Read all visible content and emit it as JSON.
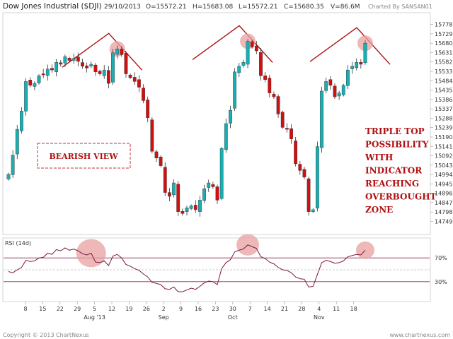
{
  "header": {
    "title": "Dow Jones Industrial ($DJI)",
    "date": "29/10/2013",
    "open": "O=15572.21",
    "high": "H=15683.08",
    "low": "L=15572.21",
    "close": "C=15680.35",
    "volume": "V=86.6M",
    "charted_by": "Charted By SANSAN01"
  },
  "footer": {
    "left": "Copyright © 2013 ChartNexus",
    "right": "www.chartnexus.com"
  },
  "annotations": {
    "bearish": "BEARISH VIEW",
    "triple_top_lines": [
      "TRIPLE TOP",
      "POSSIBILITY",
      "WITH",
      "INDICATOR",
      "REACHING",
      "OVERBOUGHT",
      "ZONE"
    ]
  },
  "colors": {
    "up": "#1aaeb2",
    "down": "#d01010",
    "rsi_line": "#7a1a3a",
    "level_line": "#8a2a4a",
    "annotation": "#b01010",
    "circle_fill": "#e8a0a0"
  },
  "chart_data": {
    "type": "candlestick",
    "price_axis": {
      "ticks": [
        "15778",
        "15729",
        "15680",
        "15631",
        "15582",
        "15533",
        "15484",
        "15435",
        "15386",
        "15337",
        "15288",
        "15239",
        "15190",
        "15141",
        "15092",
        "15043",
        "14994",
        "14945",
        "14896",
        "14847",
        "14798",
        "14749"
      ],
      "range": [
        14725,
        15795
      ]
    },
    "x_axis": {
      "day_labels": [
        "8",
        "15",
        "22",
        "29",
        "5",
        "12",
        "19",
        "26",
        "2",
        "9",
        "16",
        "23",
        "30",
        "7",
        "14",
        "21",
        "28",
        "4",
        "11",
        "18"
      ],
      "month_labels": [
        {
          "label": "Aug '13",
          "index": 4
        },
        {
          "label": "Sep",
          "index": 8
        },
        {
          "label": "Oct",
          "index": 12
        },
        {
          "label": "Nov",
          "index": 17
        }
      ]
    },
    "series": {
      "close": [
        14995,
        15095,
        15230,
        15325,
        15480,
        15460,
        15470,
        15510,
        15515,
        15545,
        15540,
        15580,
        15570,
        15610,
        15590,
        15600,
        15585,
        15560,
        15550,
        15570,
        15530,
        15520,
        15540,
        15470,
        15630,
        15650,
        15620,
        15520,
        15500,
        15480,
        15450,
        15380,
        15290,
        15115,
        15080,
        15040,
        14900,
        14880,
        14950,
        14800,
        14790,
        14820,
        14830,
        14810,
        14860,
        14920,
        14950,
        14930,
        14860,
        15130,
        15260,
        15330,
        15530,
        15560,
        15580,
        15690,
        15660,
        15640,
        15510,
        15490,
        15420,
        15400,
        15310,
        15240,
        15230,
        15180,
        15050,
        15015,
        14980,
        14800,
        14810,
        15140,
        15430,
        15480,
        15460,
        15400,
        15420,
        15460,
        15540,
        15560,
        15580,
        15570,
        15680
      ],
      "rsi": {
        "values": [
          47,
          45,
          50,
          54,
          66,
          64,
          65,
          70,
          71,
          78,
          76,
          84,
          82,
          87,
          83,
          85,
          82,
          77,
          75,
          78,
          63,
          62,
          65,
          57,
          73,
          76,
          70,
          59,
          56,
          52,
          49,
          43,
          38,
          29,
          27,
          25,
          18,
          17,
          21,
          13,
          13,
          16,
          19,
          17,
          22,
          28,
          31,
          30,
          25,
          52,
          62,
          67,
          80,
          83,
          85,
          92,
          89,
          86,
          72,
          69,
          63,
          60,
          54,
          50,
          49,
          45,
          38,
          35,
          34,
          21,
          22,
          42,
          62,
          66,
          64,
          61,
          62,
          65,
          72,
          74,
          76,
          75,
          83
        ],
        "label": "RSI (14d)",
        "levels": [
          70,
          30
        ],
        "level_labels": [
          "70%",
          "30%"
        ]
      }
    }
  }
}
